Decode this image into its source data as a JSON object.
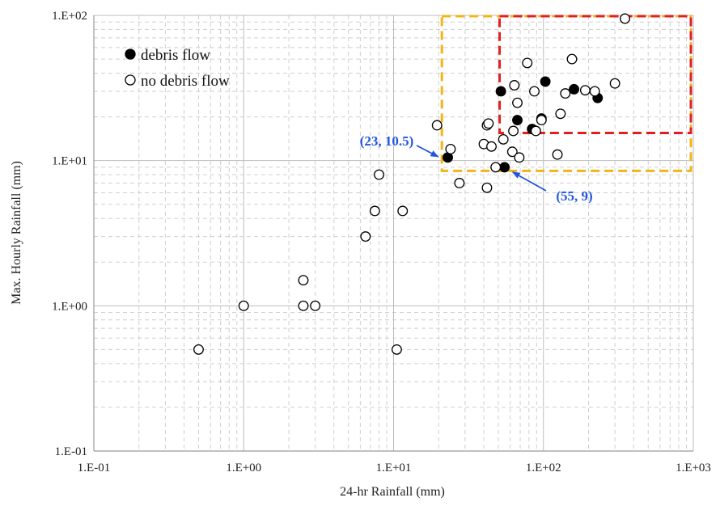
{
  "chart_data": {
    "type": "scatter",
    "xscale": "log",
    "yscale": "log",
    "xlim": [
      0.1,
      1000
    ],
    "ylim": [
      0.1,
      100
    ],
    "xlabel": "24-hr Rainfall (mm)",
    "ylabel": "Max. Hourly Rainfall (mm)",
    "xticks": [
      "1.E-01",
      "1.E+00",
      "1.E+01",
      "1.E+02",
      "1.E+03"
    ],
    "yticks": [
      "1.E-01",
      "1.E+00",
      "1.E+01",
      "1.E+02"
    ],
    "grid": true,
    "legend_position": "top-left",
    "series": [
      {
        "name": "debris flow",
        "marker": "filled-circle",
        "color": "#000000",
        "points": [
          [
            23,
            10.5
          ],
          [
            55,
            9
          ],
          [
            52,
            30
          ],
          [
            67,
            19
          ],
          [
            84,
            16.5
          ],
          [
            97,
            19.5
          ],
          [
            103,
            35
          ],
          [
            160,
            31
          ],
          [
            230,
            27
          ]
        ]
      },
      {
        "name": "no debris flow",
        "marker": "open-circle",
        "color": "#000000",
        "points": [
          [
            0.5,
            0.5
          ],
          [
            1.0,
            1.0
          ],
          [
            2.5,
            1.5
          ],
          [
            2.5,
            1.0
          ],
          [
            3.0,
            1.0
          ],
          [
            6.5,
            3.0
          ],
          [
            7.5,
            4.5
          ],
          [
            8.0,
            8.0
          ],
          [
            10.5,
            0.5
          ],
          [
            11.5,
            4.5
          ],
          [
            19.5,
            17.5
          ],
          [
            24,
            12
          ],
          [
            27.5,
            7
          ],
          [
            40,
            13
          ],
          [
            42,
            6.5
          ],
          [
            42,
            17.5
          ],
          [
            43,
            18
          ],
          [
            45,
            12.5
          ],
          [
            48,
            9
          ],
          [
            54,
            14
          ],
          [
            62,
            11.5
          ],
          [
            63,
            16
          ],
          [
            64,
            33
          ],
          [
            67,
            25
          ],
          [
            69,
            10.5
          ],
          [
            78,
            47
          ],
          [
            87,
            30
          ],
          [
            89,
            16
          ],
          [
            97,
            19
          ],
          [
            124,
            11
          ],
          [
            130,
            21
          ],
          [
            140,
            29
          ],
          [
            155,
            50
          ],
          [
            190,
            30.5
          ],
          [
            220,
            30
          ],
          [
            300,
            34
          ],
          [
            350,
            95
          ]
        ]
      }
    ],
    "annotations": [
      {
        "text": "(23, 10.5)",
        "color": "#2255dd"
      },
      {
        "text": "(55, 9)",
        "color": "#2255dd"
      }
    ],
    "regions": [
      {
        "name": "orange-threshold-box",
        "x_range": [
          21,
          1000
        ],
        "y_range": [
          8.5,
          100
        ],
        "color": "#f2b417"
      },
      {
        "name": "red-threshold-box",
        "x_range": [
          51,
          1000
        ],
        "y_range": [
          15.5,
          100
        ],
        "color": "#e02020"
      }
    ]
  }
}
